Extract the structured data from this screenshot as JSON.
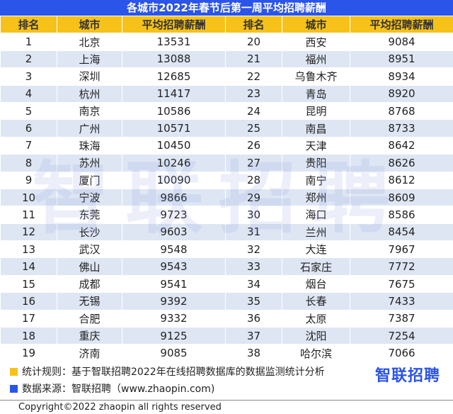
{
  "title": "各城市2022年春节后第一周平均招聘薪酬",
  "headers": [
    "排名",
    "城市",
    "平均招聘薪酬",
    "排名",
    "城市",
    "平均招聘薪酬"
  ],
  "left": [
    {
      "rank": "1",
      "city": "北京",
      "salary": "13531"
    },
    {
      "rank": "2",
      "city": "上海",
      "salary": "13088"
    },
    {
      "rank": "3",
      "city": "深圳",
      "salary": "12685"
    },
    {
      "rank": "4",
      "city": "杭州",
      "salary": "11417"
    },
    {
      "rank": "5",
      "city": "南京",
      "salary": "10586"
    },
    {
      "rank": "6",
      "city": "广州",
      "salary": "10571"
    },
    {
      "rank": "7",
      "city": "珠海",
      "salary": "10450"
    },
    {
      "rank": "8",
      "city": "苏州",
      "salary": "10246"
    },
    {
      "rank": "9",
      "city": "厦门",
      "salary": "10090"
    },
    {
      "rank": "10",
      "city": "宁波",
      "salary": "9866"
    },
    {
      "rank": "11",
      "city": "东莞",
      "salary": "9723"
    },
    {
      "rank": "12",
      "city": "长沙",
      "salary": "9603"
    },
    {
      "rank": "13",
      "city": "武汉",
      "salary": "9548"
    },
    {
      "rank": "14",
      "city": "佛山",
      "salary": "9543"
    },
    {
      "rank": "15",
      "city": "成都",
      "salary": "9541"
    },
    {
      "rank": "16",
      "city": "无锡",
      "salary": "9392"
    },
    {
      "rank": "17",
      "city": "合肥",
      "salary": "9332"
    },
    {
      "rank": "18",
      "city": "重庆",
      "salary": "9125"
    },
    {
      "rank": "19",
      "city": "济南",
      "salary": "9085"
    }
  ],
  "right": [
    {
      "rank": "20",
      "city": "西安",
      "salary": "9084"
    },
    {
      "rank": "21",
      "city": "福州",
      "salary": "8951"
    },
    {
      "rank": "22",
      "city": "乌鲁木齐",
      "salary": "8934"
    },
    {
      "rank": "23",
      "city": "青岛",
      "salary": "8920"
    },
    {
      "rank": "24",
      "city": "昆明",
      "salary": "8768"
    },
    {
      "rank": "25",
      "city": "南昌",
      "salary": "8733"
    },
    {
      "rank": "26",
      "city": "天津",
      "salary": "8642"
    },
    {
      "rank": "27",
      "city": "贵阳",
      "salary": "8626"
    },
    {
      "rank": "28",
      "city": "南宁",
      "salary": "8612"
    },
    {
      "rank": "29",
      "city": "郑州",
      "salary": "8609"
    },
    {
      "rank": "30",
      "city": "海口",
      "salary": "8586"
    },
    {
      "rank": "31",
      "city": "兰州",
      "salary": "8454"
    },
    {
      "rank": "32",
      "city": "大连",
      "salary": "7967"
    },
    {
      "rank": "33",
      "city": "石家庄",
      "salary": "7772"
    },
    {
      "rank": "34",
      "city": "烟台",
      "salary": "7675"
    },
    {
      "rank": "35",
      "city": "长春",
      "salary": "7433"
    },
    {
      "rank": "36",
      "city": "太原",
      "salary": "7387"
    },
    {
      "rank": "37",
      "city": "沈阳",
      "salary": "7254"
    },
    {
      "rank": "38",
      "city": "哈尔滨",
      "salary": "7066"
    }
  ],
  "watermark": "智联招聘",
  "notes": {
    "rule": "统计规则：基于智联招聘2022年在线招聘数据库的数据监测统计分析",
    "source": "数据来源：智联招聘（www.zhaopin.com)"
  },
  "logo_text": "智联招聘",
  "copyright": "Copyright©2022 zhaopin all rights reserved",
  "colors": {
    "title_bg": "#2b54e8",
    "header_bg": "#f6c21a",
    "row_stripe": "#dee6f4",
    "rule_marker": "#f6c21a",
    "source_marker": "#2b54e8"
  }
}
